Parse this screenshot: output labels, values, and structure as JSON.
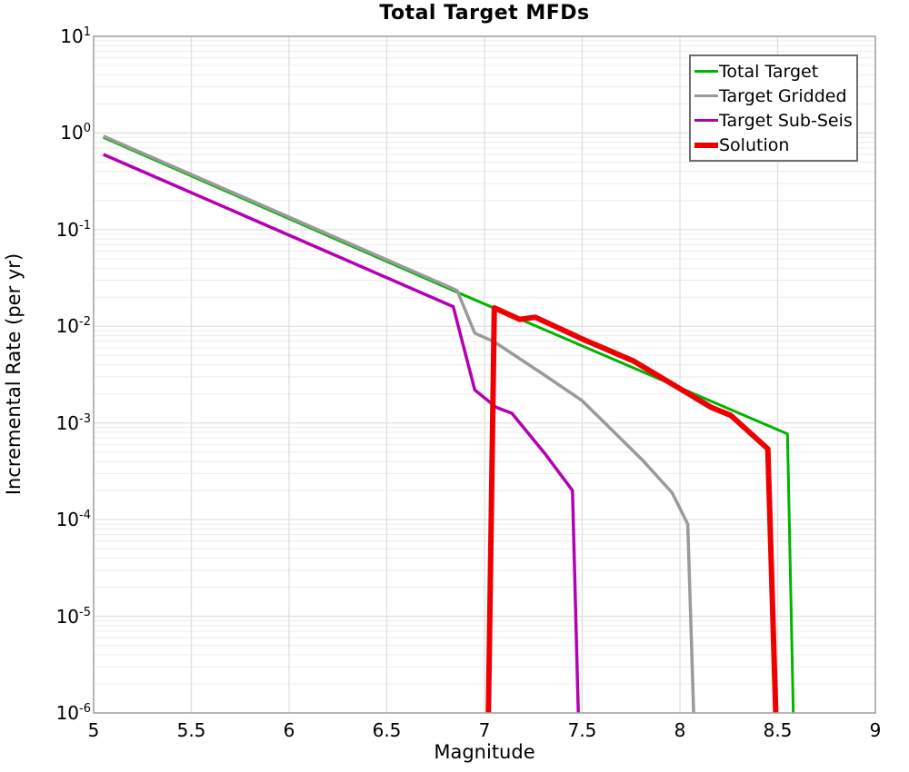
{
  "chart_data": {
    "type": "line",
    "title": "Total Target MFDs",
    "xlabel": "Magnitude",
    "ylabel": "Incremental Rate (per yr)",
    "x_axis": {
      "min": 5,
      "max": 9,
      "ticks": [
        5,
        5.5,
        6,
        6.5,
        7,
        7.5,
        8,
        8.5,
        9
      ],
      "tick_labels": [
        "5",
        "5.5",
        "6",
        "6.5",
        "7",
        "7.5",
        "8",
        "8.5",
        "9"
      ]
    },
    "y_axis": {
      "scale": "log",
      "min": 1e-06,
      "max": 10,
      "tick_base": "10",
      "tick_exponents": [
        "1",
        "0",
        "-1",
        "-2",
        "-3",
        "-4",
        "-5",
        "-6"
      ]
    },
    "grid": {
      "on": true,
      "log_minor": true,
      "vertical_major_step": 0.5
    },
    "legend_position": "top-right",
    "frame_color": "#a3a3a3",
    "grid_major_color": "#e0e0e0",
    "grid_minor_color": "#ececec",
    "series": [
      {
        "name": "Total Target",
        "color": "#00b400",
        "width": 3,
        "points": [
          [
            5.05,
            0.9
          ],
          [
            6.85,
            0.023
          ],
          [
            8.55,
            0.00077
          ],
          [
            8.58,
            1e-06
          ]
        ]
      },
      {
        "name": "Target Gridded",
        "color": "#9a9a9a",
        "width": 3.5,
        "points": [
          [
            5.05,
            0.93
          ],
          [
            6.86,
            0.0235
          ],
          [
            6.95,
            0.0085
          ],
          [
            7.05,
            0.0069
          ],
          [
            7.3,
            0.0032
          ],
          [
            7.5,
            0.0017
          ],
          [
            7.81,
            0.00041
          ],
          [
            7.96,
            0.00019
          ],
          [
            8.04,
            9e-05
          ],
          [
            8.07,
            1e-06
          ]
        ]
      },
      {
        "name": "Target Sub-Seis",
        "color": "#b400b4",
        "width": 3.5,
        "points": [
          [
            5.05,
            0.6
          ],
          [
            6.84,
            0.016
          ],
          [
            6.95,
            0.0022
          ],
          [
            7.06,
            0.00145
          ],
          [
            7.14,
            0.00126
          ],
          [
            7.31,
            0.00048
          ],
          [
            7.45,
            0.0002
          ],
          [
            7.48,
            1e-06
          ]
        ]
      },
      {
        "name": "Solution",
        "color": "#ee0000",
        "width": 6,
        "points": [
          [
            7.02,
            1e-06
          ],
          [
            7.05,
            0.0155
          ],
          [
            7.18,
            0.0118
          ],
          [
            7.26,
            0.0124
          ],
          [
            7.5,
            0.0074
          ],
          [
            7.76,
            0.0044
          ],
          [
            8.16,
            0.00145
          ],
          [
            8.26,
            0.0012
          ],
          [
            8.45,
            0.00054
          ],
          [
            8.49,
            1e-06
          ]
        ]
      }
    ]
  }
}
